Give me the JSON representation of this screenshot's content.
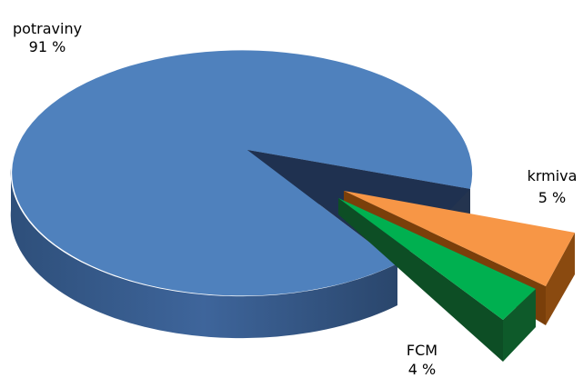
{
  "chart_data": {
    "type": "pie",
    "style": "3d-exploded",
    "slices": [
      {
        "name": "potraviny",
        "value": 91,
        "label": "91 %",
        "color": "#4F81BD",
        "exploded": false
      },
      {
        "name": "krmiva",
        "value": 5,
        "label": "5 %",
        "color": "#F79646",
        "exploded": true
      },
      {
        "name": "FCM",
        "value": 4,
        "label": "4 %",
        "color": "#00B050",
        "exploded": true
      }
    ]
  }
}
